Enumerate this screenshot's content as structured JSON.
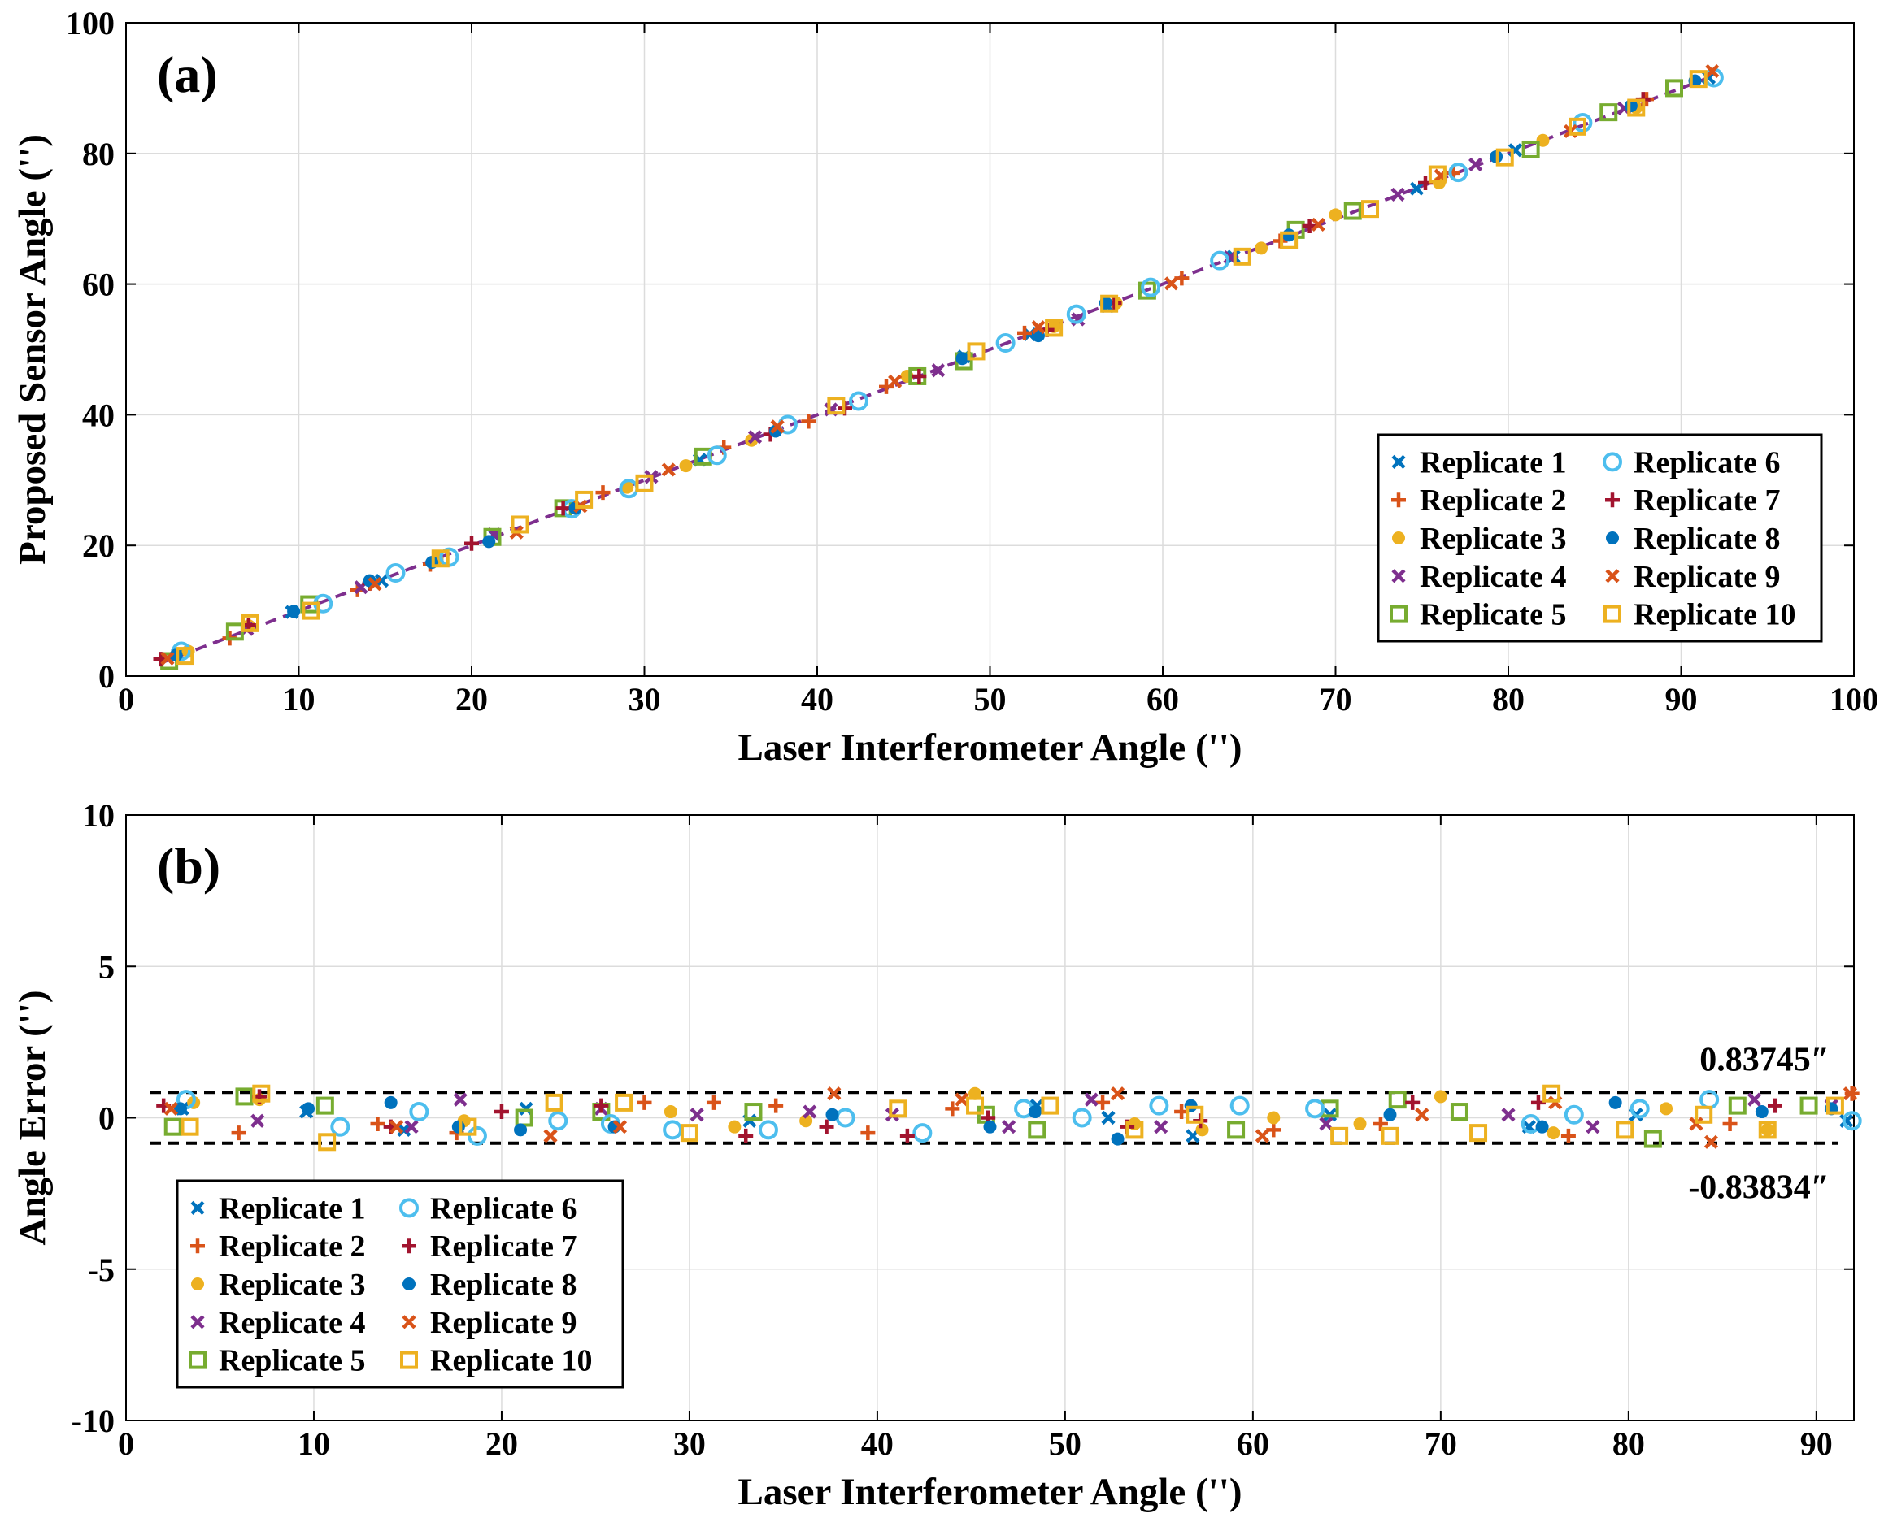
{
  "chart_data": [
    {
      "type": "scatter",
      "panel_label": "(a)",
      "xlabel": "Laser Interferometer Angle ('')",
      "ylabel": "Proposed Sensor Angle ('')",
      "xlim": [
        0,
        100
      ],
      "ylim": [
        0,
        100
      ],
      "xticks": [
        "0",
        "10",
        "20",
        "30",
        "40",
        "50",
        "60",
        "70",
        "80",
        "90",
        "100"
      ],
      "yticks": [
        "0",
        "20",
        "40",
        "60",
        "80",
        "100"
      ],
      "grid": true,
      "legend_position": "bottom-right",
      "fit_line": {
        "x": [
          2,
          92
        ],
        "y": [
          2,
          92
        ],
        "style": "dashed",
        "color": "#7e2f8e"
      },
      "series": [
        {
          "name": "Replicate 1",
          "marker": "x",
          "color": "#0072bd",
          "x": [
            3.0,
            9.6,
            14.8,
            21.3,
            33.2,
            48.5,
            52.3,
            56.8,
            64.1,
            74.7,
            80.4,
            91.6
          ],
          "y": [
            3.3,
            9.8,
            14.6,
            21.6,
            33.1,
            48.9,
            52.3,
            56.6,
            64.2,
            74.6,
            80.5,
            91.6
          ]
        },
        {
          "name": "Replicate 2",
          "marker": "+",
          "color": "#d95319",
          "x": [
            6.0,
            13.4,
            17.6,
            27.6,
            34.6,
            39.5,
            44.0,
            52.0,
            61.1,
            66.8,
            76.8,
            88.0
          ],
          "y": [
            5.8,
            13.2,
            17.1,
            28.1,
            35.0,
            39.0,
            44.3,
            52.5,
            60.9,
            66.6,
            77.0,
            88.3
          ]
        },
        {
          "name": "Replicate 3",
          "marker": "dot",
          "color": "#edb120",
          "x": [
            3.6,
            7.1,
            18.0,
            29.0,
            32.4,
            36.2,
            45.2,
            53.7,
            57.3,
            65.7,
            70.0,
            76.0,
            82.0,
            87.4
          ],
          "y": [
            3.8,
            7.7,
            17.9,
            28.9,
            32.2,
            36.1,
            45.9,
            53.5,
            57.1,
            65.5,
            70.6,
            75.5,
            82.0,
            87.0
          ]
        },
        {
          "name": "Replicate 4",
          "marker": "x",
          "color": "#7e2f8e",
          "x": [
            7.0,
            13.6,
            21.3,
            30.4,
            36.4,
            40.8,
            47.0,
            55.1,
            63.9,
            73.6,
            78.1,
            86.7
          ],
          "y": [
            7.2,
            13.6,
            21.7,
            30.5,
            36.6,
            40.8,
            46.8,
            54.6,
            64.1,
            73.7,
            78.3,
            86.9
          ]
        },
        {
          "name": "Replicate 5",
          "marker": "square",
          "color": "#77ac30",
          "x": [
            2.5,
            6.3,
            10.6,
            21.2,
            25.3,
            33.4,
            45.8,
            48.5,
            59.1,
            67.7,
            71.0,
            81.3,
            85.8,
            89.6
          ],
          "y": [
            2.3,
            6.8,
            11.0,
            21.3,
            25.7,
            33.6,
            45.9,
            48.2,
            59.0,
            68.3,
            71.2,
            80.6,
            86.3,
            90.0
          ]
        },
        {
          "name": "Replicate 6",
          "marker": "circle",
          "color": "#4dbeee",
          "x": [
            3.2,
            11.4,
            15.6,
            18.7,
            25.8,
            29.1,
            34.2,
            38.3,
            42.4,
            50.9,
            55.0,
            59.3,
            63.3,
            77.1,
            84.3,
            91.9
          ],
          "y": [
            3.8,
            11.1,
            15.8,
            18.2,
            25.6,
            28.7,
            33.8,
            38.5,
            42.1,
            51.0,
            55.4,
            59.5,
            63.6,
            77.1,
            84.7,
            91.6
          ]
        },
        {
          "name": "Replicate 7",
          "marker": "+",
          "color": "#a2142f",
          "x": [
            2.0,
            7.1,
            14.1,
            20.0,
            25.3,
            37.3,
            41.6,
            45.9,
            53.3,
            57.2,
            68.5,
            75.2,
            87.8
          ],
          "y": [
            2.6,
            7.8,
            14.2,
            20.3,
            25.7,
            37.0,
            41.0,
            45.9,
            53.0,
            57.1,
            68.9,
            75.5,
            88.3
          ]
        },
        {
          "name": "Replicate 8",
          "marker": "dot",
          "color": "#0072bd",
          "x": [
            2.9,
            9.7,
            14.1,
            17.7,
            21.0,
            26.0,
            37.6,
            48.4,
            52.8,
            56.7,
            67.3,
            79.3,
            87.1,
            90.8
          ],
          "y": [
            3.2,
            9.9,
            14.6,
            17.4,
            20.6,
            25.7,
            37.5,
            48.6,
            52.1,
            57.1,
            67.5,
            79.5,
            87.3,
            91.1
          ]
        },
        {
          "name": "Replicate 9",
          "marker": "x",
          "color": "#d95319",
          "x": [
            2.4,
            14.4,
            22.6,
            26.3,
            31.4,
            37.7,
            44.5,
            52.8,
            60.5,
            69.0,
            76.1,
            83.6,
            91.8
          ],
          "y": [
            2.7,
            14.1,
            22.0,
            26.0,
            31.6,
            38.2,
            45.1,
            53.4,
            60.1,
            69.1,
            76.6,
            83.4,
            92.6
          ]
        },
        {
          "name": "Replicate 10",
          "marker": "square",
          "color": "#edb120",
          "x": [
            3.4,
            7.2,
            10.7,
            18.2,
            22.8,
            26.5,
            30.0,
            41.1,
            49.2,
            53.7,
            56.9,
            64.6,
            67.3,
            72.0,
            75.9,
            79.8,
            84.0,
            87.4,
            91.0
          ],
          "y": [
            3.1,
            8.1,
            10.0,
            18.0,
            23.2,
            27.0,
            29.5,
            41.4,
            49.7,
            53.3,
            57.0,
            64.2,
            66.7,
            71.5,
            76.8,
            79.4,
            84.1,
            87.0,
            91.4
          ]
        }
      ]
    },
    {
      "type": "scatter",
      "panel_label": "(b)",
      "xlabel": "Laser Interferometer Angle ('')",
      "ylabel": "Angle Error ('')",
      "xlim": [
        0,
        92
      ],
      "ylim": [
        -10,
        10
      ],
      "xticks": [
        "0",
        "10",
        "20",
        "30",
        "40",
        "50",
        "60",
        "70",
        "80",
        "90"
      ],
      "yticks": [
        "-10",
        "-5",
        "0",
        "5",
        "10"
      ],
      "grid": true,
      "legend_position": "bottom-left",
      "bounds": [
        {
          "value": 0.83745,
          "label": "0.83745″"
        },
        {
          "value": -0.83834,
          "label": "-0.83834″"
        }
      ],
      "series": [
        {
          "name": "Replicate 1",
          "marker": "x",
          "color": "#0072bd",
          "x": [
            3.0,
            9.6,
            14.8,
            21.3,
            33.2,
            48.5,
            52.3,
            56.8,
            64.1,
            74.7,
            80.4,
            91.6
          ],
          "y": [
            0.3,
            0.2,
            -0.4,
            0.3,
            -0.1,
            0.4,
            0.0,
            -0.6,
            0.1,
            -0.3,
            0.1,
            -0.1
          ]
        },
        {
          "name": "Replicate 2",
          "marker": "+",
          "color": "#d95319",
          "x": [
            6.0,
            13.4,
            17.6,
            27.6,
            31.3,
            34.6,
            39.5,
            44.0,
            52.0,
            56.2,
            61.1,
            66.8,
            76.8,
            85.4,
            91.9
          ],
          "y": [
            -0.5,
            -0.2,
            -0.5,
            0.5,
            0.5,
            0.4,
            -0.5,
            0.3,
            0.5,
            0.2,
            -0.4,
            -0.2,
            -0.6,
            -0.2,
            0.8
          ]
        },
        {
          "name": "Replicate 3",
          "marker": "dot",
          "color": "#edb120",
          "x": [
            3.6,
            7.1,
            18.0,
            29.0,
            32.4,
            36.2,
            45.2,
            53.7,
            57.3,
            61.1,
            65.7,
            70.0,
            76.0,
            82.0,
            87.4
          ],
          "y": [
            0.5,
            0.6,
            -0.1,
            0.2,
            -0.3,
            -0.1,
            0.8,
            -0.2,
            -0.4,
            0.0,
            -0.2,
            0.7,
            -0.5,
            0.3,
            -0.4
          ]
        },
        {
          "name": "Replicate 4",
          "marker": "x",
          "color": "#7e2f8e",
          "x": [
            7.0,
            15.2,
            17.8,
            25.3,
            30.4,
            36.4,
            40.8,
            47.0,
            51.4,
            55.1,
            63.9,
            73.6,
            78.1,
            86.7,
            90.8
          ],
          "y": [
            -0.1,
            -0.3,
            0.6,
            0.3,
            0.1,
            0.2,
            0.1,
            -0.3,
            0.6,
            -0.3,
            -0.2,
            0.1,
            -0.3,
            0.6,
            0.4
          ]
        },
        {
          "name": "Replicate 5",
          "marker": "square",
          "color": "#77ac30",
          "x": [
            2.5,
            6.3,
            10.6,
            21.2,
            25.3,
            33.4,
            45.8,
            48.5,
            59.1,
            64.1,
            67.7,
            71.0,
            81.3,
            85.8,
            89.6
          ],
          "y": [
            -0.3,
            0.7,
            0.4,
            0.0,
            0.2,
            0.2,
            0.1,
            -0.4,
            -0.4,
            0.3,
            0.6,
            0.2,
            -0.7,
            0.4,
            0.4
          ]
        },
        {
          "name": "Replicate 6",
          "marker": "circle",
          "color": "#4dbeee",
          "x": [
            3.2,
            11.4,
            15.6,
            18.7,
            23.0,
            25.8,
            29.1,
            34.2,
            38.3,
            42.4,
            47.8,
            50.9,
            55.0,
            59.3,
            63.3,
            74.8,
            77.1,
            80.6,
            84.3,
            91.9
          ],
          "y": [
            0.6,
            -0.3,
            0.2,
            -0.6,
            -0.1,
            -0.2,
            -0.4,
            -0.4,
            0.0,
            -0.5,
            0.3,
            0.0,
            0.4,
            0.4,
            0.3,
            -0.2,
            0.1,
            0.3,
            0.6,
            -0.1
          ]
        },
        {
          "name": "Replicate 7",
          "marker": "+",
          "color": "#a2142f",
          "x": [
            2.0,
            7.1,
            14.1,
            20.0,
            25.3,
            33.0,
            37.3,
            41.6,
            45.9,
            53.3,
            57.2,
            68.5,
            75.2,
            87.8
          ],
          "y": [
            0.4,
            0.7,
            -0.3,
            0.2,
            0.4,
            -0.6,
            -0.3,
            -0.6,
            0.0,
            -0.3,
            -0.1,
            0.5,
            0.5,
            0.4
          ]
        },
        {
          "name": "Replicate 8",
          "marker": "dot",
          "color": "#0072bd",
          "x": [
            2.9,
            9.7,
            14.1,
            17.7,
            21.0,
            26.0,
            37.6,
            46.0,
            48.4,
            52.8,
            56.7,
            67.3,
            75.4,
            79.3,
            87.1,
            90.8
          ],
          "y": [
            0.3,
            0.3,
            0.5,
            -0.3,
            -0.4,
            -0.3,
            0.1,
            -0.3,
            0.2,
            -0.7,
            0.4,
            0.1,
            -0.3,
            0.5,
            0.2,
            0.3
          ]
        },
        {
          "name": "Replicate 9",
          "marker": "x",
          "color": "#d95319",
          "x": [
            2.4,
            14.4,
            22.6,
            26.3,
            37.7,
            44.5,
            52.8,
            60.5,
            69.0,
            76.1,
            83.6,
            84.4,
            91.8
          ],
          "y": [
            0.3,
            -0.3,
            -0.6,
            -0.3,
            0.8,
            0.6,
            0.8,
            -0.6,
            0.1,
            0.5,
            -0.2,
            -0.8,
            0.8
          ]
        },
        {
          "name": "Replicate 10",
          "marker": "square",
          "color": "#edb120",
          "x": [
            3.4,
            7.2,
            10.7,
            18.2,
            22.8,
            26.5,
            30.0,
            41.1,
            45.2,
            49.2,
            53.7,
            56.9,
            64.6,
            67.3,
            72.0,
            75.9,
            79.8,
            84.0,
            87.4,
            91.0
          ],
          "y": [
            -0.3,
            0.8,
            -0.8,
            -0.3,
            0.5,
            0.5,
            -0.5,
            0.3,
            0.4,
            0.4,
            -0.4,
            0.1,
            -0.6,
            -0.6,
            -0.5,
            0.8,
            -0.4,
            0.1,
            -0.4,
            0.4
          ]
        }
      ]
    }
  ]
}
